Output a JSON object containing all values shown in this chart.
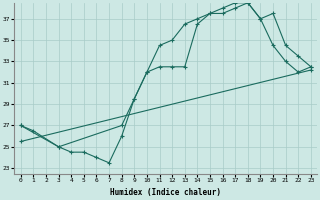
{
  "xlabel": "Humidex (Indice chaleur)",
  "xlim": [
    -0.5,
    23.5
  ],
  "ylim": [
    22.5,
    38.5
  ],
  "yticks": [
    23,
    25,
    27,
    29,
    31,
    33,
    35,
    37
  ],
  "xticks": [
    0,
    1,
    2,
    3,
    4,
    5,
    6,
    7,
    8,
    9,
    10,
    11,
    12,
    13,
    14,
    15,
    16,
    17,
    18,
    19,
    20,
    21,
    22,
    23
  ],
  "bg_color": "#cde8e4",
  "grid_color": "#a8ccc8",
  "line_color": "#1a6b5e",
  "line1_x": [
    0,
    1,
    3,
    4,
    5,
    6,
    7,
    8,
    9,
    10,
    11,
    12,
    13,
    14,
    15,
    16,
    17,
    18,
    19,
    20,
    21,
    22,
    23
  ],
  "line1_y": [
    27.0,
    26.5,
    25.0,
    24.5,
    24.5,
    24.0,
    23.5,
    26.0,
    29.5,
    32.0,
    34.5,
    35.0,
    36.5,
    37.0,
    37.5,
    37.5,
    38.0,
    38.5,
    37.0,
    34.5,
    33.0,
    32.0,
    32.5
  ],
  "line2_x": [
    0,
    3,
    8,
    9,
    10,
    11,
    12,
    13,
    14,
    15,
    16,
    17,
    18,
    19,
    20,
    21,
    22,
    23
  ],
  "line2_y": [
    27.0,
    25.0,
    27.0,
    29.5,
    32.0,
    32.5,
    32.5,
    32.5,
    36.5,
    37.5,
    38.0,
    38.5,
    38.5,
    37.0,
    37.5,
    34.5,
    33.5,
    32.5
  ],
  "line3_x": [
    0,
    23
  ],
  "line3_y": [
    25.5,
    32.2
  ],
  "marker": "+"
}
